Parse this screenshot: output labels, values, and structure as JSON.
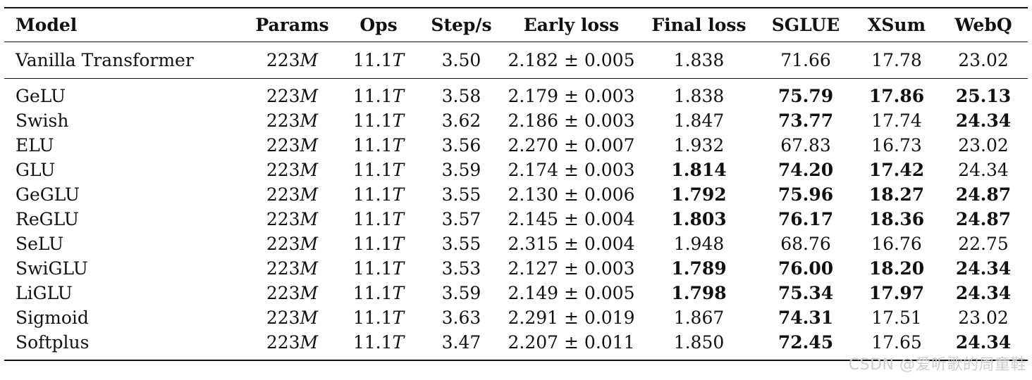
{
  "columns": [
    "Model",
    "Params",
    "Ops",
    "Step/s",
    "Early loss",
    "Final loss",
    "SGLUE",
    "XSum",
    "WebQ"
  ],
  "units": {
    "params": "M",
    "ops": "T"
  },
  "baseline": {
    "model": "Vanilla Transformer",
    "params": "223",
    "ops": "11.1",
    "step": "3.50",
    "early": "2.182 ± 0.005",
    "final": "1.838",
    "sglue": "71.66",
    "xsum": "17.78",
    "webq": "23.02"
  },
  "rows": [
    {
      "model": "GeLU",
      "params": "223",
      "ops": "11.1",
      "step": "3.58",
      "early": "2.179 ± 0.003",
      "final": "1.838",
      "sglue": "75.79",
      "xsum": "17.86",
      "webq": "25.13",
      "bold": {
        "final": false,
        "sglue": true,
        "xsum": true,
        "webq": true
      }
    },
    {
      "model": "Swish",
      "params": "223",
      "ops": "11.1",
      "step": "3.62",
      "early": "2.186 ± 0.003",
      "final": "1.847",
      "sglue": "73.77",
      "xsum": "17.74",
      "webq": "24.34",
      "bold": {
        "final": false,
        "sglue": true,
        "xsum": false,
        "webq": true
      }
    },
    {
      "model": "ELU",
      "params": "223",
      "ops": "11.1",
      "step": "3.56",
      "early": "2.270 ± 0.007",
      "final": "1.932",
      "sglue": "67.83",
      "xsum": "16.73",
      "webq": "23.02",
      "bold": {
        "final": false,
        "sglue": false,
        "xsum": false,
        "webq": false
      }
    },
    {
      "model": "GLU",
      "params": "223",
      "ops": "11.1",
      "step": "3.59",
      "early": "2.174 ± 0.003",
      "final": "1.814",
      "sglue": "74.20",
      "xsum": "17.42",
      "webq": "24.34",
      "bold": {
        "final": true,
        "sglue": true,
        "xsum": true,
        "webq": false
      }
    },
    {
      "model": "GeGLU",
      "params": "223",
      "ops": "11.1",
      "step": "3.55",
      "early": "2.130 ± 0.006",
      "final": "1.792",
      "sglue": "75.96",
      "xsum": "18.27",
      "webq": "24.87",
      "bold": {
        "final": true,
        "sglue": true,
        "xsum": true,
        "webq": true
      }
    },
    {
      "model": "ReGLU",
      "params": "223",
      "ops": "11.1",
      "step": "3.57",
      "early": "2.145 ± 0.004",
      "final": "1.803",
      "sglue": "76.17",
      "xsum": "18.36",
      "webq": "24.87",
      "bold": {
        "final": true,
        "sglue": true,
        "xsum": true,
        "webq": true
      }
    },
    {
      "model": "SeLU",
      "params": "223",
      "ops": "11.1",
      "step": "3.55",
      "early": "2.315 ± 0.004",
      "final": "1.948",
      "sglue": "68.76",
      "xsum": "16.76",
      "webq": "22.75",
      "bold": {
        "final": false,
        "sglue": false,
        "xsum": false,
        "webq": false
      }
    },
    {
      "model": "SwiGLU",
      "params": "223",
      "ops": "11.1",
      "step": "3.53",
      "early": "2.127 ± 0.003",
      "final": "1.789",
      "sglue": "76.00",
      "xsum": "18.20",
      "webq": "24.34",
      "bold": {
        "final": true,
        "sglue": true,
        "xsum": true,
        "webq": true
      }
    },
    {
      "model": "LiGLU",
      "params": "223",
      "ops": "11.1",
      "step": "3.59",
      "early": "2.149 ± 0.005",
      "final": "1.798",
      "sglue": "75.34",
      "xsum": "17.97",
      "webq": "24.34",
      "bold": {
        "final": true,
        "sglue": true,
        "xsum": true,
        "webq": true
      }
    },
    {
      "model": "Sigmoid",
      "params": "223",
      "ops": "11.1",
      "step": "3.63",
      "early": "2.291 ± 0.019",
      "final": "1.867",
      "sglue": "74.31",
      "xsum": "17.51",
      "webq": "23.02",
      "bold": {
        "final": false,
        "sglue": true,
        "xsum": false,
        "webq": false
      }
    },
    {
      "model": "Softplus",
      "params": "223",
      "ops": "11.1",
      "step": "3.47",
      "early": "2.207 ± 0.011",
      "final": "1.850",
      "sglue": "72.45",
      "xsum": "17.65",
      "webq": "24.34",
      "bold": {
        "final": false,
        "sglue": true,
        "xsum": false,
        "webq": true
      }
    }
  ],
  "watermark": "CSDN @爱听歌的周童鞋"
}
